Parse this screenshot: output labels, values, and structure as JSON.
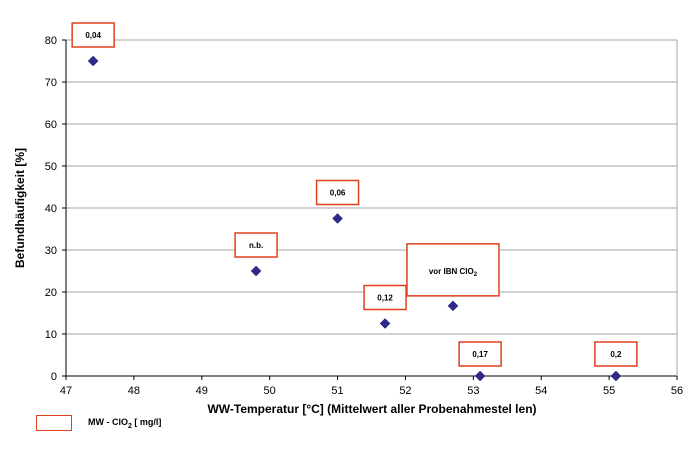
{
  "chart_data": {
    "type": "scatter",
    "title": "",
    "xlabel": "WW-Temperatur [°C] (Mittelwert aller Probenahmestel len)",
    "ylabel": "Befundhäufigkeit [%]",
    "xlim": [
      47,
      56
    ],
    "ylim": [
      0,
      80
    ],
    "x_ticks": [
      47,
      48,
      49,
      50,
      51,
      52,
      53,
      54,
      55,
      56
    ],
    "y_ticks": [
      0,
      10,
      20,
      30,
      40,
      50,
      60,
      70,
      80
    ],
    "grid": "horizontal",
    "colors": {
      "marker": "#2e2a8a",
      "label_box": "#e0401c",
      "grid": "#a6a6a6"
    },
    "points": [
      {
        "x": 47.4,
        "y": 75,
        "label": "0,04"
      },
      {
        "x": 49.8,
        "y": 25,
        "label": "n.b."
      },
      {
        "x": 51.0,
        "y": 37.5,
        "label": "0,06"
      },
      {
        "x": 51.7,
        "y": 12.5,
        "label": "0,12"
      },
      {
        "x": 52.7,
        "y": 16.7,
        "label": "vor IBN ClO2"
      },
      {
        "x": 53.1,
        "y": 0,
        "label": "0,17"
      },
      {
        "x": 55.1,
        "y": 0,
        "label": "0,2"
      }
    ],
    "legend": {
      "position": "bottom-left",
      "label": "MW - ClO2 [ mg/l]"
    }
  }
}
